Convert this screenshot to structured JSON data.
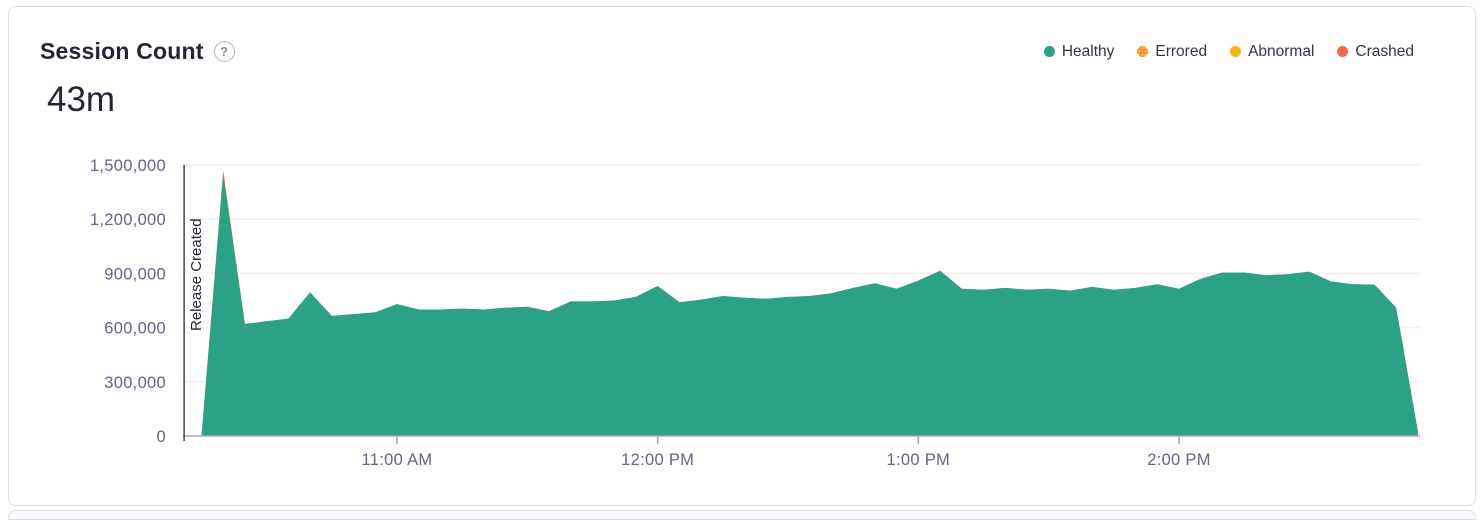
{
  "header": {
    "title": "Session Count",
    "help_icon_glyph": "?",
    "big_number": "43m"
  },
  "legend": [
    {
      "label": "Healthy",
      "color": "#2ba185",
      "pattern": "solid"
    },
    {
      "label": "Errored",
      "color": "#f58a3e",
      "pattern": "dots"
    },
    {
      "label": "Abnormal",
      "color": "#f0b712",
      "pattern": "solid"
    },
    {
      "label": "Crashed",
      "color": "#f4674e",
      "pattern": "solid"
    }
  ],
  "chart_data": {
    "type": "area",
    "title": "Session Count",
    "stacked": true,
    "grid": true,
    "legend_position": "top-right",
    "ylim": [
      0,
      1500000
    ],
    "y_ticks": [
      {
        "value": 0,
        "label": "0"
      },
      {
        "value": 300000,
        "label": "300,000"
      },
      {
        "value": 600000,
        "label": "600,000"
      },
      {
        "value": 900000,
        "label": "900,000"
      },
      {
        "value": 1200000,
        "label": "1,200,000"
      },
      {
        "value": 1500000,
        "label": "1,500,000"
      }
    ],
    "x_ticks": [
      "11:00 AM",
      "12:00 PM",
      "1:00 PM",
      "2:00 PM"
    ],
    "annotations": [
      {
        "type": "vline",
        "label": "Release Created",
        "time": "10:11"
      }
    ],
    "x": [
      "10:15",
      "10:20",
      "10:25",
      "10:30",
      "10:35",
      "10:40",
      "10:45",
      "10:50",
      "10:55",
      "11:00",
      "11:05",
      "11:10",
      "11:15",
      "11:20",
      "11:25",
      "11:30",
      "11:35",
      "11:40",
      "11:45",
      "11:50",
      "11:55",
      "12:00",
      "12:05",
      "12:10",
      "12:15",
      "12:20",
      "12:25",
      "12:30",
      "12:35",
      "12:40",
      "12:45",
      "12:50",
      "12:55",
      "1:00",
      "1:05",
      "1:10",
      "1:15",
      "1:20",
      "1:25",
      "1:30",
      "1:35",
      "1:40",
      "1:45",
      "1:50",
      "1:55",
      "2:00",
      "2:05",
      "2:10",
      "2:15",
      "2:20",
      "2:25",
      "2:30",
      "2:35",
      "2:40",
      "2:45",
      "2:50",
      "2:55"
    ],
    "series": [
      {
        "name": "Healthy",
        "color": "#2ba185",
        "values": [
          0,
          1450000,
          620000,
          635000,
          650000,
          795000,
          665000,
          675000,
          685000,
          730000,
          700000,
          700000,
          705000,
          700000,
          710000,
          715000,
          690000,
          745000,
          745000,
          750000,
          770000,
          830000,
          740000,
          755000,
          775000,
          765000,
          760000,
          770000,
          775000,
          790000,
          820000,
          845000,
          815000,
          860000,
          915000,
          815000,
          810000,
          820000,
          810000,
          815000,
          805000,
          825000,
          810000,
          820000,
          840000,
          815000,
          870000,
          905000,
          905000,
          890000,
          895000,
          910000,
          855000,
          840000,
          838000,
          710000,
          25000
        ]
      },
      {
        "name": "Errored",
        "color": "#f58a3e",
        "values": [
          0,
          22000,
          0,
          0,
          0,
          0,
          0,
          0,
          0,
          0,
          0,
          0,
          0,
          0,
          0,
          0,
          0,
          0,
          0,
          0,
          0,
          0,
          0,
          0,
          0,
          0,
          0,
          0,
          0,
          0,
          0,
          0,
          0,
          0,
          0,
          0,
          0,
          0,
          0,
          0,
          0,
          0,
          0,
          0,
          0,
          0,
          0,
          0,
          0,
          0,
          0,
          0,
          0,
          0,
          0,
          0,
          0
        ]
      },
      {
        "name": "Abnormal",
        "color": "#f0b712",
        "values": [
          0,
          0,
          0,
          0,
          0,
          0,
          0,
          0,
          0,
          0,
          0,
          0,
          0,
          0,
          0,
          0,
          0,
          0,
          0,
          0,
          0,
          0,
          0,
          0,
          0,
          0,
          0,
          0,
          0,
          0,
          0,
          0,
          0,
          0,
          0,
          0,
          0,
          0,
          0,
          0,
          0,
          0,
          0,
          0,
          0,
          0,
          0,
          0,
          0,
          0,
          0,
          0,
          0,
          0,
          0,
          0,
          0
        ]
      },
      {
        "name": "Crashed",
        "color": "#f4674e",
        "values": [
          0,
          0,
          0,
          0,
          0,
          0,
          0,
          0,
          0,
          0,
          0,
          0,
          0,
          0,
          0,
          0,
          0,
          0,
          0,
          0,
          0,
          0,
          0,
          0,
          0,
          0,
          0,
          0,
          0,
          0,
          0,
          0,
          0,
          0,
          0,
          0,
          0,
          0,
          0,
          0,
          0,
          0,
          0,
          0,
          0,
          0,
          0,
          0,
          0,
          0,
          0,
          0,
          0,
          0,
          0,
          0,
          0
        ]
      }
    ]
  },
  "colors": {
    "grid_line": "#f2f0f5",
    "axis_line": "#aba4b9",
    "axis_text": "#6e6086",
    "release_line": "#2b2233",
    "card_border": "#e0dce5"
  }
}
